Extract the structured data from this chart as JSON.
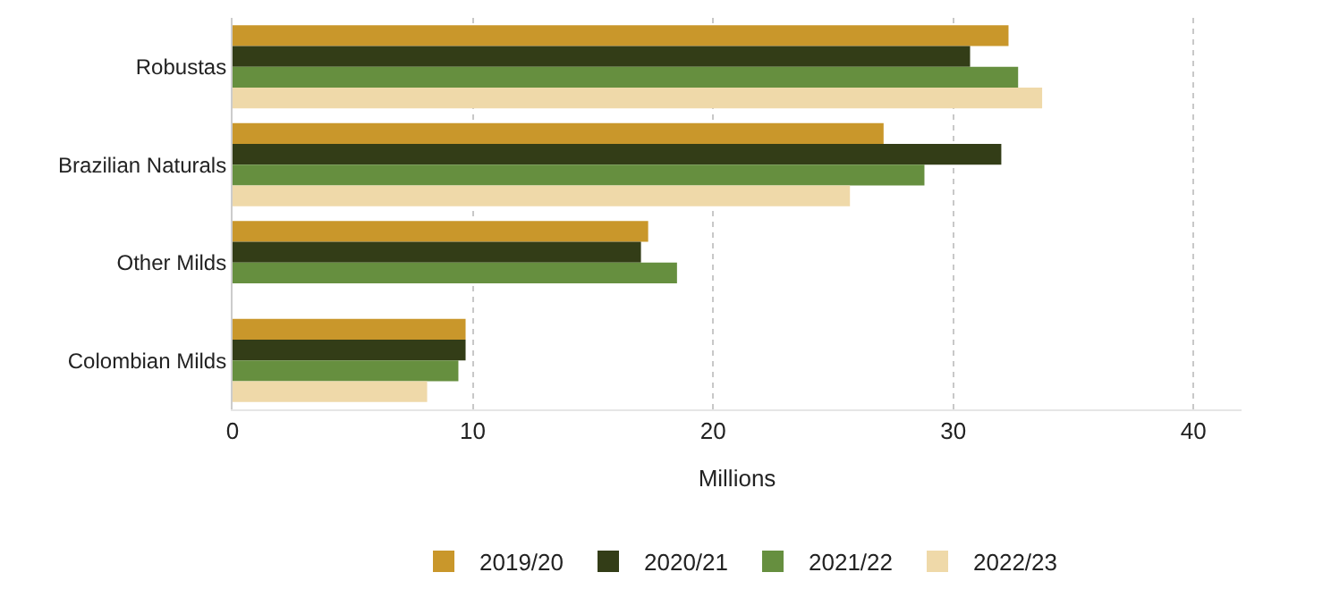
{
  "chart_data": {
    "type": "bar",
    "orientation": "horizontal",
    "xlabel": "Millions",
    "categories": [
      "Robustas",
      "Brazilian Naturals",
      "Other Milds",
      "Colombian Milds"
    ],
    "series": [
      {
        "name": "2019/20",
        "color": "#c9972b",
        "values": [
          32.3,
          27.1,
          17.3,
          9.7
        ]
      },
      {
        "name": "2020/21",
        "color": "#333d17",
        "values": [
          30.7,
          32.0,
          17.0,
          9.7
        ]
      },
      {
        "name": "2021/22",
        "color": "#668f3f",
        "values": [
          32.7,
          28.8,
          18.5,
          9.4
        ]
      },
      {
        "name": "2022/23",
        "color": "#efd9a9",
        "values": [
          33.7,
          25.7,
          null,
          8.1
        ]
      }
    ],
    "xlim": [
      0,
      42
    ],
    "xticks": [
      0,
      10,
      20,
      30,
      40
    ],
    "grid": "x",
    "legend": "bottom"
  }
}
